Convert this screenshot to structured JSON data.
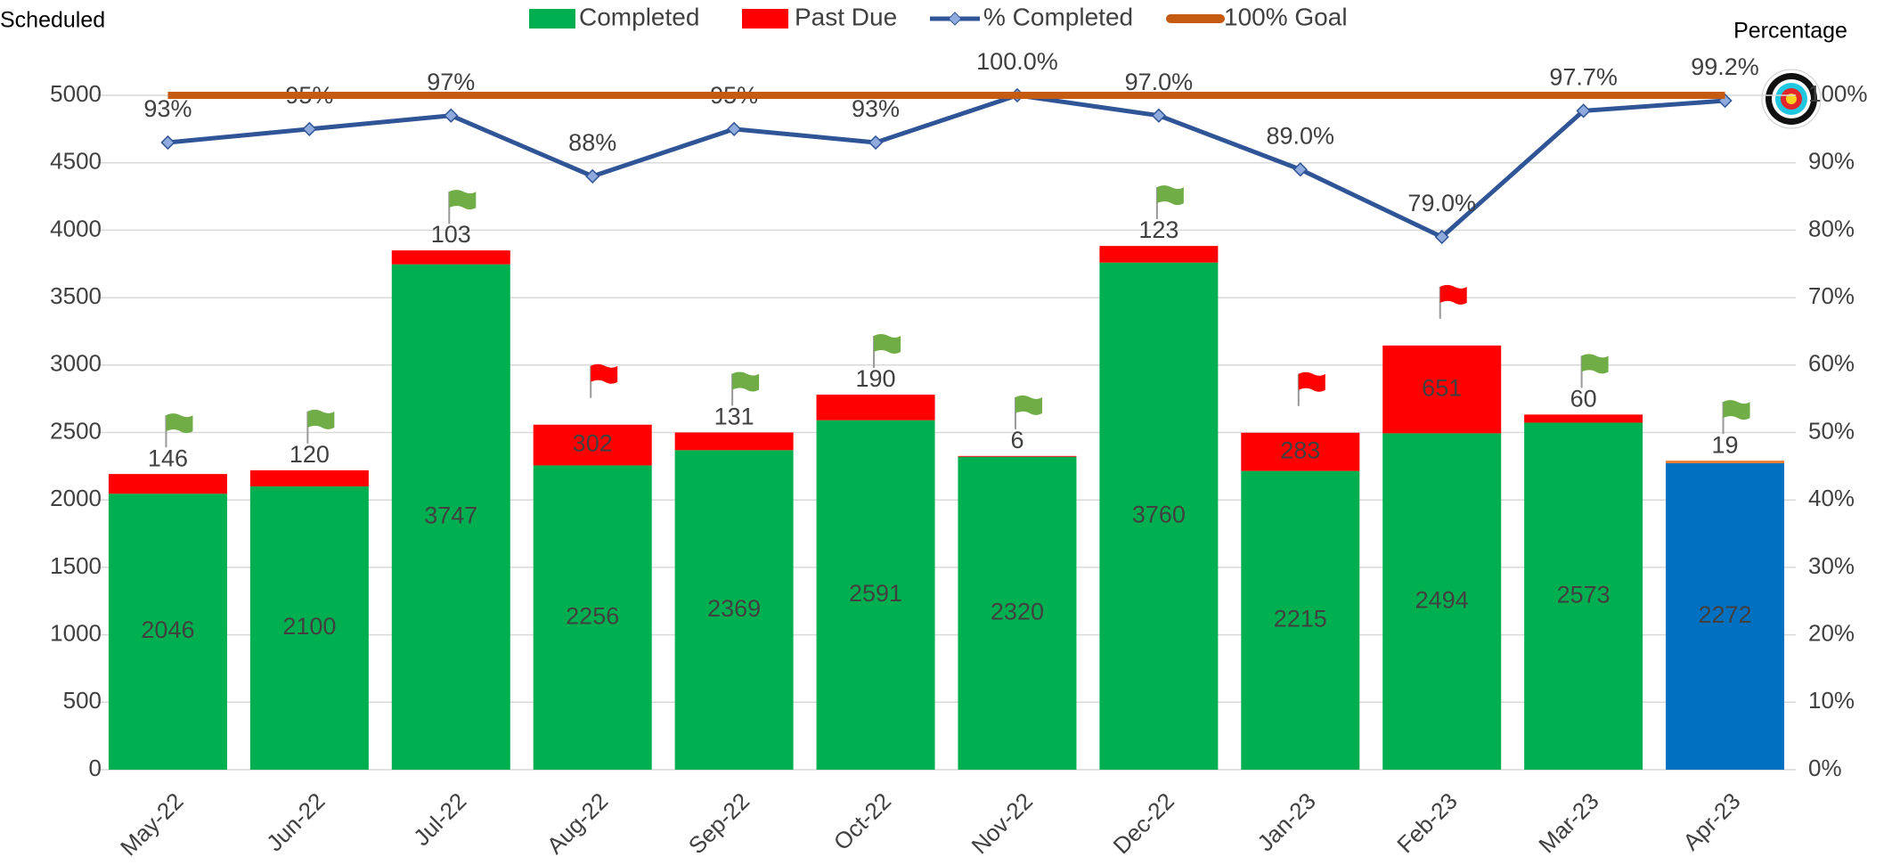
{
  "chart_data": {
    "type": "bar",
    "y_axis_title": "Scheduled",
    "y2_axis_title": "Percentage",
    "categories": [
      "May-22",
      "Jun-22",
      "Jul-22",
      "Aug-22",
      "Sep-22",
      "Oct-22",
      "Nov-22",
      "Dec-22",
      "Jan-23",
      "Feb-23",
      "Mar-23",
      "Apr-23"
    ],
    "series": [
      {
        "name": "Completed",
        "type": "bar",
        "color": "#00b050",
        "colors": [
          "#00b050",
          "#00b050",
          "#00b050",
          "#00b050",
          "#00b050",
          "#00b050",
          "#00b050",
          "#00b050",
          "#00b050",
          "#00b050",
          "#00b050",
          "#0070c0"
        ],
        "values": [
          2046,
          2100,
          3747,
          2256,
          2369,
          2591,
          2320,
          3760,
          2215,
          2494,
          2573,
          2272
        ]
      },
      {
        "name": "Past Due",
        "type": "bar",
        "color": "#ff0000",
        "colors": [
          "#ff0000",
          "#ff0000",
          "#ff0000",
          "#ff0000",
          "#ff0000",
          "#ff0000",
          "#ff0000",
          "#ff0000",
          "#ff0000",
          "#ff0000",
          "#ff0000",
          "#ed7d31"
        ],
        "values": [
          146,
          120,
          103,
          302,
          131,
          190,
          6,
          123,
          283,
          651,
          60,
          19
        ]
      },
      {
        "name": "% Completed",
        "type": "line",
        "axis": "y2",
        "color": "#2f5597",
        "values": [
          93,
          95,
          97,
          88,
          95,
          93,
          100,
          97,
          89,
          79,
          97.7,
          99.2
        ],
        "value_labels": [
          "93%",
          "95%",
          "97%",
          "88%",
          "95%",
          "93%",
          "100.0%",
          "97.0%",
          "89.0%",
          "79.0%",
          "97.7%",
          "99.2%"
        ]
      },
      {
        "name": "100% Goal",
        "type": "line",
        "axis": "y2",
        "color": "#c55a11",
        "values": [
          100,
          100,
          100,
          100,
          100,
          100,
          100,
          100,
          100,
          100,
          100,
          100
        ]
      }
    ],
    "flag_colors": [
      "#70ad47",
      "#70ad47",
      "#70ad47",
      "#ff0000",
      "#70ad47",
      "#70ad47",
      "#70ad47",
      "#70ad47",
      "#ff0000",
      "#ff0000",
      "#70ad47",
      "#70ad47"
    ],
    "ylim": [
      0,
      5000
    ],
    "yticks": [
      0,
      500,
      1000,
      1500,
      2000,
      2500,
      3000,
      3500,
      4000,
      4500,
      5000
    ],
    "y2lim": [
      0,
      100
    ],
    "y2ticks": [
      {
        "value": 0,
        "label": "0%"
      },
      {
        "value": 10,
        "label": "10%"
      },
      {
        "value": 20,
        "label": "20%"
      },
      {
        "value": 30,
        "label": "30%"
      },
      {
        "value": 40,
        "label": "40%"
      },
      {
        "value": 50,
        "label": "50%"
      },
      {
        "value": 60,
        "label": "60%"
      },
      {
        "value": 70,
        "label": "70%"
      },
      {
        "value": 80,
        "label": "80%"
      },
      {
        "value": 90,
        "label": "90%"
      },
      {
        "value": 100,
        "label": "100%"
      }
    ],
    "grid": true,
    "legend": "top"
  }
}
